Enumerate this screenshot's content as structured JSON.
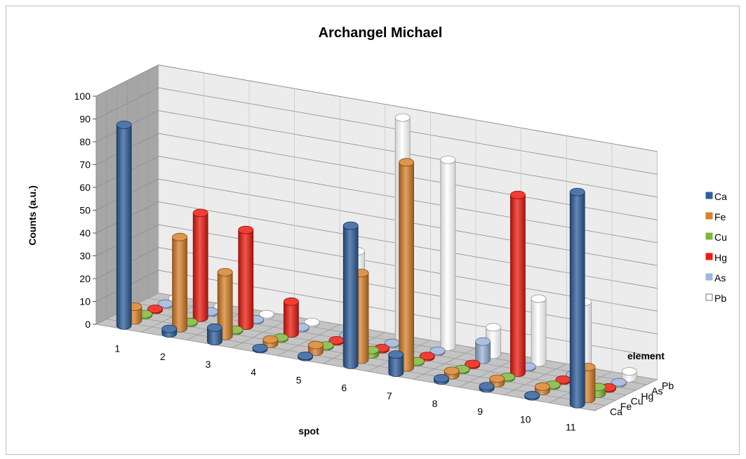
{
  "chart_data": {
    "type": "bar3d",
    "title": "Archangel Michael",
    "ylabel": "Counts (a.u.)",
    "xlabel": "spot",
    "zlabel": "element",
    "ylim": [
      0,
      100
    ],
    "yticks": [
      0,
      10,
      20,
      30,
      40,
      50,
      60,
      70,
      80,
      90,
      100
    ],
    "categories": [
      "1",
      "2",
      "3",
      "4",
      "5",
      "6",
      "7",
      "8",
      "9",
      "10",
      "11"
    ],
    "legend_position": "right",
    "grid": true,
    "series": [
      {
        "name": "Ca",
        "color": "#2f5f9e",
        "values": [
          88,
          2,
          6,
          0.5,
          0.5,
          61,
          8,
          1,
          1,
          0.5,
          93
        ]
      },
      {
        "name": "Fe",
        "color": "#d9822b",
        "values": [
          6,
          40,
          28,
          2,
          3,
          38,
          90,
          2,
          2,
          2,
          14
        ]
      },
      {
        "name": "Cu",
        "color": "#7db83a",
        "values": [
          0.5,
          0.5,
          0.5,
          0.5,
          0.5,
          2,
          0.5,
          0.5,
          0.5,
          0.5,
          3
        ]
      },
      {
        "name": "Hg",
        "color": "#ee1c10",
        "values": [
          0.5,
          46,
          42,
          14,
          0.5,
          0.5,
          0.5,
          0.5,
          78,
          0.5,
          0.5
        ]
      },
      {
        "name": "As",
        "color": "#9db6dd",
        "values": [
          0.5,
          0.5,
          0.5,
          0.5,
          0.5,
          0.5,
          0.5,
          8,
          0.5,
          0.5,
          0.5
        ]
      },
      {
        "name": "Pb",
        "color": "#ffffff",
        "values": [
          0.5,
          0.5,
          0.5,
          0.5,
          35,
          97,
          82,
          12,
          28,
          30,
          3
        ]
      }
    ]
  }
}
